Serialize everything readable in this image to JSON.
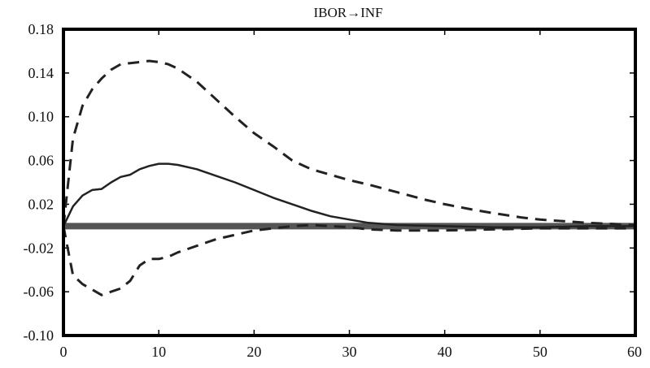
{
  "chart_data": {
    "type": "line",
    "title": "IBOR→INF",
    "xlabel": "",
    "ylabel": "",
    "xlim": [
      0,
      60
    ],
    "ylim": [
      -0.1,
      0.18
    ],
    "xticks": [
      0,
      10,
      20,
      30,
      40,
      50,
      60
    ],
    "xtick_labels": [
      "0",
      "10",
      "20",
      "30",
      "40",
      "50",
      "60"
    ],
    "yticks": [
      -0.1,
      -0.06,
      -0.02,
      0.02,
      0.06,
      0.1,
      0.14,
      0.18
    ],
    "ytick_labels": [
      "-0.10",
      "-0.06",
      "-0.02",
      "0.02",
      "0.06",
      "0.10",
      "0.14",
      "0.18"
    ],
    "grid": false,
    "zero_line": 0,
    "colors": {
      "line": "#222222",
      "frame": "#000000",
      "zero_line": "#555555"
    },
    "series": [
      {
        "style": "solid",
        "x": [
          0,
          1,
          2,
          3,
          4,
          5,
          6,
          7,
          8,
          9,
          10,
          11,
          12,
          14,
          16,
          18,
          20,
          22,
          24,
          26,
          28,
          30,
          32,
          35,
          40,
          45,
          50,
          55,
          60
        ],
        "y": [
          0.0,
          0.018,
          0.028,
          0.033,
          0.034,
          0.04,
          0.045,
          0.047,
          0.052,
          0.055,
          0.057,
          0.057,
          0.056,
          0.052,
          0.046,
          0.04,
          0.033,
          0.026,
          0.02,
          0.014,
          0.009,
          0.006,
          0.003,
          0.001,
          0.0,
          -0.001,
          -0.001,
          0.0,
          0.0
        ]
      },
      {
        "style": "dashed",
        "x": [
          0,
          1,
          2,
          3,
          4,
          5,
          6,
          7,
          8,
          9,
          10,
          11,
          12,
          14,
          16,
          18,
          20,
          22,
          24,
          26,
          28,
          30,
          32,
          35,
          38,
          40,
          43,
          45,
          48,
          50,
          55,
          60
        ],
        "y": [
          0.0,
          0.08,
          0.11,
          0.125,
          0.135,
          0.143,
          0.148,
          0.149,
          0.15,
          0.151,
          0.15,
          0.148,
          0.144,
          0.132,
          0.116,
          0.1,
          0.085,
          0.073,
          0.06,
          0.052,
          0.047,
          0.042,
          0.038,
          0.031,
          0.024,
          0.02,
          0.015,
          0.012,
          0.008,
          0.006,
          0.003,
          0.001
        ]
      },
      {
        "style": "dashed",
        "x": [
          0,
          1,
          2,
          3,
          4,
          5,
          6,
          7,
          8,
          9,
          10,
          11,
          12,
          14,
          16,
          18,
          20,
          22,
          24,
          26,
          28,
          30,
          32,
          35,
          40,
          45,
          50,
          55,
          60
        ],
        "y": [
          0.0,
          -0.045,
          -0.053,
          -0.058,
          -0.063,
          -0.06,
          -0.057,
          -0.05,
          -0.036,
          -0.03,
          -0.03,
          -0.028,
          -0.024,
          -0.018,
          -0.012,
          -0.008,
          -0.004,
          -0.002,
          0.0,
          0.001,
          0.0,
          -0.001,
          -0.003,
          -0.004,
          -0.004,
          -0.003,
          -0.002,
          -0.002,
          -0.002
        ]
      }
    ]
  }
}
